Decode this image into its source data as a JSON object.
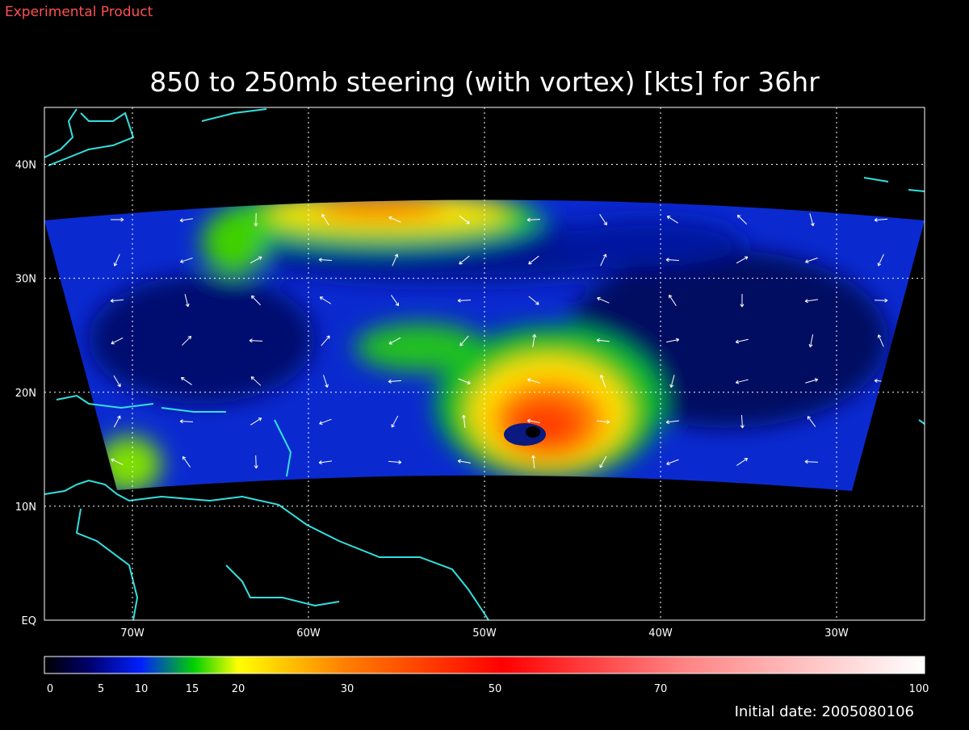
{
  "header": {
    "label": "Experimental Product"
  },
  "map": {
    "title": "850 to 250mb steering (with vortex) [kts] for 36hr",
    "lonlim": [
      -75,
      -25
    ],
    "latlim": [
      0,
      45
    ],
    "lonticks": [
      {
        "value": -70,
        "label": "70W"
      },
      {
        "value": -60,
        "label": "60W"
      },
      {
        "value": -50,
        "label": "50W"
      },
      {
        "value": -40,
        "label": "40W"
      },
      {
        "value": -30,
        "label": "30W"
      }
    ],
    "latticks": [
      {
        "value": 0,
        "label": "EQ"
      },
      {
        "value": 10,
        "label": "10N"
      },
      {
        "value": 20,
        "label": "20N"
      },
      {
        "value": 30,
        "label": "30N"
      },
      {
        "value": 40,
        "label": "40N"
      }
    ]
  },
  "colorbar": {
    "labels": [
      "0",
      "5",
      "10",
      "15",
      "20",
      "30",
      "50",
      "70",
      "100"
    ]
  },
  "footer": {
    "date_label": "Initial date: 2005080106"
  }
}
